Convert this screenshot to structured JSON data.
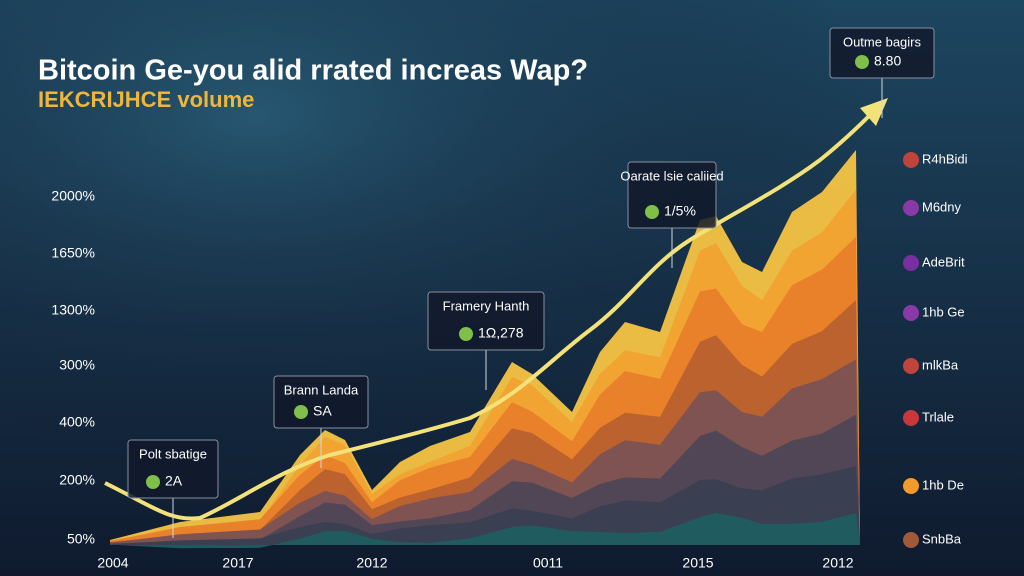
{
  "title": "Bitcoin Ge-you alid rrated increas Wap?",
  "subtitle": "IEKCRIJHCE volume",
  "y_axis_labels": [
    "2000%",
    "1650%",
    "1300%",
    "300%",
    "400%",
    "200%",
    "50%"
  ],
  "x_axis_labels": [
    "2004",
    "2017",
    "2012",
    "0011",
    "2015",
    "2012"
  ],
  "annotations": [
    {
      "title": "Polt sbatige",
      "value": "2A"
    },
    {
      "title": "Brann Landa",
      "value": "SA"
    },
    {
      "title": "Framery Hanth",
      "value": "1Ω,278"
    },
    {
      "title": "Oarate lsie caliied",
      "value": "1/5%"
    },
    {
      "title": "Outme bagirs",
      "value": "8.80"
    }
  ],
  "legend": [
    {
      "label": "R4hBidi",
      "color": "#c0443c"
    },
    {
      "label": "M6dny",
      "color": "#8a3aa8"
    },
    {
      "label": "AdeBrit",
      "color": "#7a2fa0"
    },
    {
      "label": "1hb Ge",
      "color": "#8a3aa8"
    },
    {
      "label": "mlkBa",
      "color": "#c0443c"
    },
    {
      "label": "Trlale",
      "color": "#c8383a"
    },
    {
      "label": "1hb De",
      "color": "#f39a2a"
    },
    {
      "label": "SnbBa",
      "color": "#a05a3a"
    }
  ]
}
